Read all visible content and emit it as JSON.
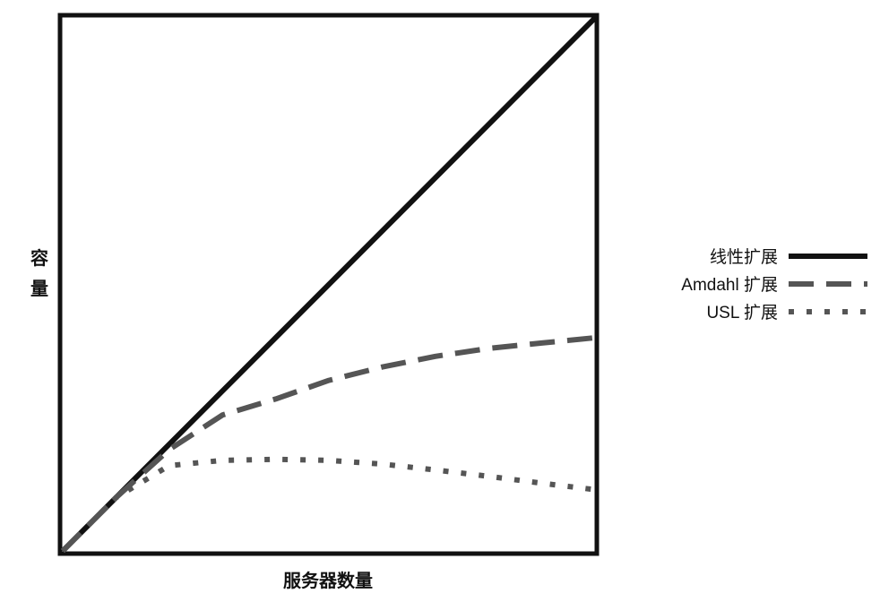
{
  "chart_data": {
    "type": "line",
    "title": "",
    "xlabel": "服务器数量",
    "ylabel": "容量",
    "xlim": [
      0,
      1
    ],
    "ylim": [
      0,
      1
    ],
    "grid": false,
    "legend_position": "right",
    "ticks_shown": false,
    "series": [
      {
        "name": "线性扩展",
        "style": "solid",
        "color": "#111111",
        "x": [
          0,
          1
        ],
        "y": [
          0,
          1
        ]
      },
      {
        "name": "Amdahl 扩展",
        "style": "dashed",
        "color": "#555555",
        "x": [
          0,
          0.1,
          0.2,
          0.3,
          0.4,
          0.5,
          0.6,
          0.7,
          0.8,
          0.9,
          1.0
        ],
        "y": [
          0,
          0.1,
          0.19,
          0.255,
          0.285,
          0.32,
          0.345,
          0.365,
          0.38,
          0.39,
          0.4
        ]
      },
      {
        "name": "USL 扩展",
        "style": "dotted",
        "color": "#555555",
        "x": [
          0,
          0.1,
          0.2,
          0.3,
          0.4,
          0.5,
          0.6,
          0.7,
          0.8,
          0.9,
          1.0
        ],
        "y": [
          0,
          0.1,
          0.16,
          0.17,
          0.172,
          0.17,
          0.163,
          0.152,
          0.14,
          0.127,
          0.115
        ]
      }
    ]
  }
}
